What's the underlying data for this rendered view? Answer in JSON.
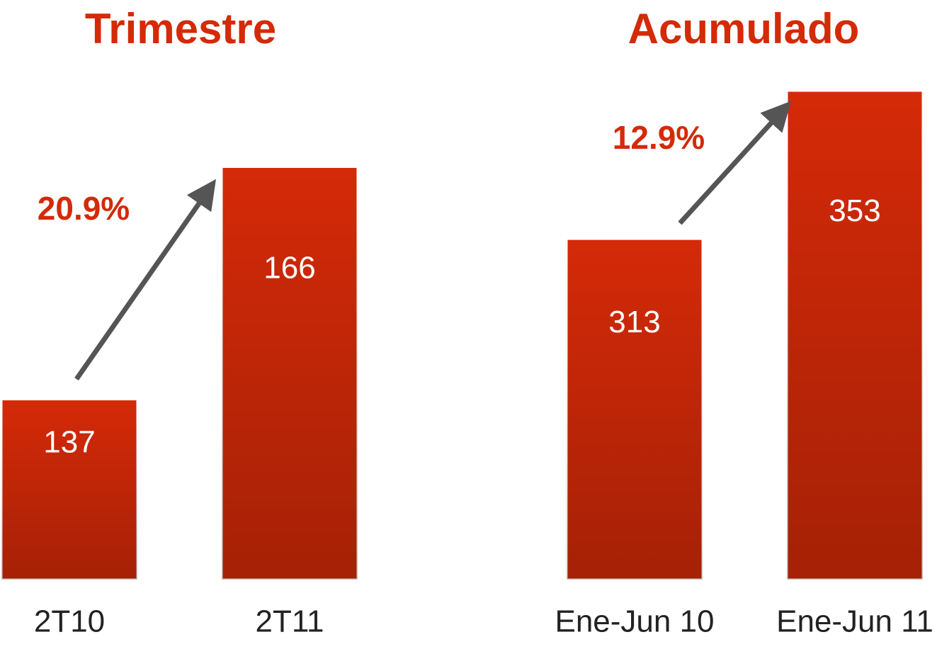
{
  "chart_data": [
    {
      "type": "bar",
      "title": "Trimestre",
      "categories": [
        "2T10",
        "2T11"
      ],
      "values": [
        137,
        166
      ],
      "color": "#d42a08",
      "ylim": [
        114.5,
        175.5
      ],
      "annotation": "20.9%"
    },
    {
      "type": "bar",
      "title": "Acumulado",
      "categories": [
        "Ene-Jun 10",
        "Ene-Jun 11"
      ],
      "values": [
        313,
        353
      ],
      "color": "#d42a08",
      "ylim": [
        221,
        353
      ],
      "annotation": "12.9%"
    }
  ]
}
